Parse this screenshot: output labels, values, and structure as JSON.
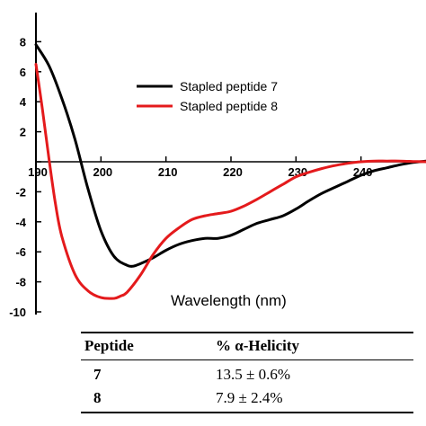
{
  "chart_data": {
    "type": "line",
    "xlabel": "Wavelength (nm)",
    "ylabel": "",
    "xlim": [
      190,
      250
    ],
    "ylim": [
      -10,
      8
    ],
    "x_ticks": [
      "190",
      "200",
      "210",
      "220",
      "230",
      "240"
    ],
    "y_ticks": [
      "8",
      "6",
      "4",
      "2",
      "0",
      "-2",
      "-4",
      "-6",
      "-8",
      "-10"
    ],
    "legend_position": "top-right",
    "series": [
      {
        "name": "Stapled peptide 7",
        "color": "#000000",
        "x": [
          190,
          192,
          194,
          196,
          198,
          200,
          202,
          204,
          205,
          206,
          208,
          210,
          212,
          214,
          216,
          218,
          220,
          222,
          224,
          226,
          228,
          230,
          232,
          234,
          236,
          238,
          240,
          242,
          244,
          246,
          248,
          250
        ],
        "y": [
          7.8,
          6.4,
          4.2,
          1.5,
          -1.8,
          -4.6,
          -6.3,
          -6.9,
          -6.95,
          -6.8,
          -6.4,
          -5.9,
          -5.5,
          -5.25,
          -5.1,
          -5.1,
          -4.9,
          -4.5,
          -4.1,
          -3.85,
          -3.6,
          -3.15,
          -2.6,
          -2.1,
          -1.7,
          -1.3,
          -0.9,
          -0.6,
          -0.4,
          -0.2,
          -0.05,
          0.05
        ]
      },
      {
        "name": "Stapled peptide 8",
        "color": "#e41a1c",
        "x": [
          190,
          191,
          192,
          193,
          194,
          196,
          198,
          200,
          202,
          203,
          204,
          206,
          208,
          210,
          212,
          214,
          216,
          218,
          220,
          222,
          224,
          226,
          228,
          230,
          232,
          234,
          236,
          238,
          240,
          242,
          244,
          246,
          248,
          250
        ],
        "y": [
          6.5,
          3.5,
          0.2,
          -2.8,
          -5.0,
          -7.5,
          -8.6,
          -9.05,
          -9.1,
          -8.95,
          -8.7,
          -7.6,
          -6.2,
          -5.1,
          -4.4,
          -3.85,
          -3.6,
          -3.45,
          -3.3,
          -2.95,
          -2.5,
          -2.0,
          -1.5,
          -1.0,
          -0.7,
          -0.45,
          -0.25,
          -0.1,
          0.0,
          0.05,
          0.05,
          0.05,
          0.02,
          0.0
        ]
      }
    ]
  },
  "table": {
    "headers": [
      "Peptide",
      "% α-Helicity"
    ],
    "rows": [
      [
        "7",
        "13.5 ± 0.6%"
      ],
      [
        "8",
        "7.9 ± 2.4%"
      ]
    ]
  }
}
